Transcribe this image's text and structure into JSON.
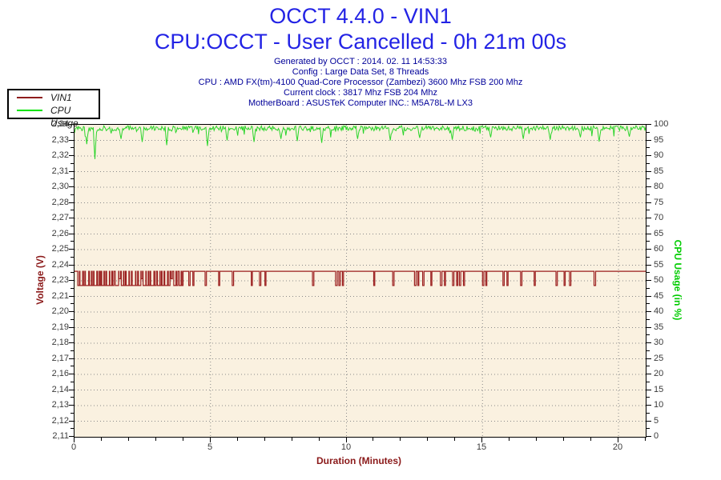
{
  "header": {
    "title": "OCCT 4.4.0 - VIN1",
    "subtitle": "CPU:OCCT - User Cancelled - 0h 21m 00s",
    "info_lines": [
      "Generated by OCCT : 2014. 02. 11 14:53:33",
      "Config : Large Data Set, 8 Threads",
      "CPU : AMD FX(tm)-4100 Quad-Core Processor (Zambezi) 3600 Mhz FSB 200 Mhz",
      "Current clock : 3817 Mhz FSB 204 Mhz",
      "MotherBoard : ASUSTeK Computer INC.: M5A78L-M LX3"
    ]
  },
  "legend": {
    "items": [
      {
        "label": "VIN1",
        "color": "#8F1D1D"
      },
      {
        "label": "CPU Usage",
        "color": "#00E400"
      }
    ]
  },
  "colors": {
    "title": "#2323E5",
    "info": "#000099",
    "voltage": "#8B1A1A",
    "cpu": "#00CC00",
    "cpu_line": "#2BD52B",
    "vin1_line": "#9B1E1E",
    "plot_bg": "#FAF1E0",
    "grid_dot": "#8A8A8A",
    "tick_label": "#3A3A3A",
    "axis": "#000000"
  },
  "chart_data": {
    "type": "line",
    "title": "OCCT 4.4.0 - VIN1",
    "x_axis": {
      "label": "Duration (Minutes)",
      "min": 0,
      "max": 21,
      "major_tick_values": [
        0,
        5,
        10,
        15,
        20
      ],
      "major_tick_labels": [
        "0",
        "5",
        "10",
        "15",
        "20"
      ],
      "minor_tick_step": 1,
      "vertical_gridlines_at": [
        5,
        10,
        15,
        20
      ]
    },
    "y_left": {
      "label": "Voltage (V)",
      "v_max": 2.34,
      "v_min": 2.11,
      "tick_labels": [
        "2,34",
        "2,33",
        "2,32",
        "2,31",
        "2,30",
        "2,28",
        "2,27",
        "2,26",
        "2,25",
        "2,24",
        "2,23",
        "2,21",
        "2,20",
        "2,19",
        "2,18",
        "2,17",
        "2,16",
        "2,14",
        "2,13",
        "2,12",
        "2,11"
      ]
    },
    "y_right": {
      "label": "CPU Usage (in %)",
      "v_max": 100,
      "v_min": 0,
      "tick_labels": [
        "100",
        "95",
        "90",
        "85",
        "80",
        "75",
        "70",
        "65",
        "60",
        "55",
        "50",
        "45",
        "40",
        "35",
        "30",
        "25",
        "20",
        "15",
        "10",
        "5",
        "0"
      ]
    },
    "grid": {
      "horizontal": true,
      "style": "dotted"
    },
    "series": [
      {
        "name": "VIN1",
        "axis": "left",
        "color": "#9B1E1E",
        "baseline_v": 2.232,
        "spike_v": 2.2215,
        "spikes": [
          [
            0.12,
            0.06
          ],
          [
            0.2,
            0.1
          ],
          [
            0.33,
            0.05
          ],
          [
            0.4,
            0.12
          ],
          [
            0.55,
            0.07
          ],
          [
            0.65,
            0.05
          ],
          [
            0.72,
            0.1
          ],
          [
            0.85,
            0.06
          ],
          [
            0.93,
            0.04
          ],
          [
            1.0,
            0.08
          ],
          [
            1.1,
            0.05
          ],
          [
            1.18,
            0.1
          ],
          [
            1.3,
            0.07
          ],
          [
            1.4,
            0.05
          ],
          [
            1.5,
            0.12
          ],
          [
            1.63,
            0.06,
            2.2265
          ],
          [
            1.72,
            0.08
          ],
          [
            1.82,
            0.05
          ],
          [
            1.9,
            0.1
          ],
          [
            2.02,
            0.07
          ],
          [
            2.12,
            0.12
          ],
          [
            2.26,
            0.06
          ],
          [
            2.35,
            0.09
          ],
          [
            2.45,
            0.05,
            2.2265
          ],
          [
            2.52,
            0.1
          ],
          [
            2.64,
            0.07
          ],
          [
            2.72,
            0.05
          ],
          [
            2.8,
            0.12
          ],
          [
            2.95,
            0.06
          ],
          [
            3.05,
            0.09
          ],
          [
            3.15,
            0.05
          ],
          [
            3.22,
            0.07
          ],
          [
            3.32,
            0.1
          ],
          [
            3.45,
            0.06
          ],
          [
            3.55,
            0.05,
            2.2265
          ],
          [
            3.65,
            0.08
          ],
          [
            3.75,
            0.05
          ],
          [
            3.85,
            0.07
          ],
          [
            3.95,
            0.04
          ],
          [
            4.2,
            0.05
          ],
          [
            4.35,
            0.04
          ],
          [
            4.8,
            0.05
          ],
          [
            5.3,
            0.04
          ],
          [
            5.8,
            0.05
          ],
          [
            6.5,
            0.04
          ],
          [
            6.8,
            0.05
          ],
          [
            7.0,
            0.04
          ],
          [
            8.75,
            0.05
          ],
          [
            9.6,
            0.06
          ],
          [
            9.72,
            0.05
          ],
          [
            9.85,
            0.04
          ],
          [
            11.0,
            0.04
          ],
          [
            11.7,
            0.05
          ],
          [
            12.5,
            0.06
          ],
          [
            12.62,
            0.04
          ],
          [
            12.8,
            0.05
          ],
          [
            13.1,
            0.04
          ],
          [
            13.45,
            0.06
          ],
          [
            13.6,
            0.04
          ],
          [
            13.9,
            0.05
          ],
          [
            14.05,
            0.04
          ],
          [
            14.15,
            0.05
          ],
          [
            14.3,
            0.04
          ],
          [
            15.0,
            0.05
          ],
          [
            15.12,
            0.04
          ],
          [
            15.75,
            0.05
          ],
          [
            15.9,
            0.04
          ],
          [
            16.4,
            0.05
          ],
          [
            16.9,
            0.04
          ],
          [
            17.7,
            0.05
          ],
          [
            18.0,
            0.04
          ],
          [
            18.2,
            0.05
          ],
          [
            19.1,
            0.06
          ]
        ]
      },
      {
        "name": "CPU Usage",
        "axis": "right",
        "color": "#2BD52B",
        "baseline": 99.2,
        "noise_range": [
          97.2,
          100
        ],
        "noise_seed": 7,
        "sample_step_minutes": 0.03,
        "dips": [
          {
            "x": 0.45,
            "v": 93.8
          },
          {
            "x": 0.75,
            "v": 89.0
          },
          {
            "x": 1.7,
            "v": 95.5
          },
          {
            "x": 2.5,
            "v": 94.5
          },
          {
            "x": 3.4,
            "v": 93.5
          },
          {
            "x": 4.9,
            "v": 93.2
          },
          {
            "x": 5.6,
            "v": 95.0
          },
          {
            "x": 6.6,
            "v": 94.5
          },
          {
            "x": 7.6,
            "v": 95.5
          },
          {
            "x": 8.2,
            "v": 94.8
          },
          {
            "x": 9.1,
            "v": 94.2
          },
          {
            "x": 10.4,
            "v": 95.5
          },
          {
            "x": 11.6,
            "v": 95.0
          },
          {
            "x": 12.7,
            "v": 95.8
          },
          {
            "x": 13.9,
            "v": 95.2
          },
          {
            "x": 15.3,
            "v": 96.0
          },
          {
            "x": 16.5,
            "v": 95.5
          },
          {
            "x": 17.5,
            "v": 95.2
          },
          {
            "x": 18.6,
            "v": 96.0
          },
          {
            "x": 19.3,
            "v": 94.6
          },
          {
            "x": 20.4,
            "v": 96.2
          }
        ]
      }
    ]
  }
}
